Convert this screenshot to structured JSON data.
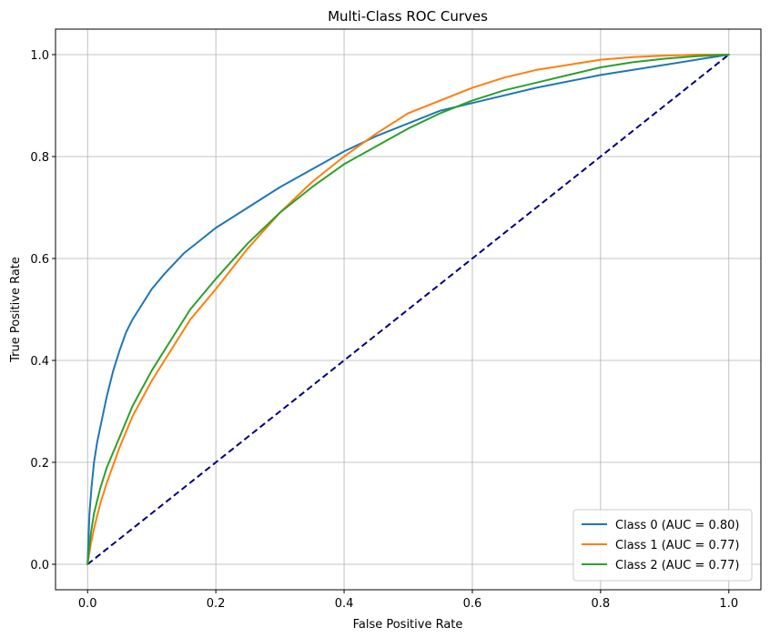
{
  "chart_data": {
    "type": "line",
    "title": "Multi-Class ROC Curves",
    "xlabel": "False Positive Rate",
    "ylabel": "True Positive Rate",
    "xlim": [
      -0.05,
      1.05
    ],
    "ylim": [
      -0.05,
      1.05
    ],
    "xticks": [
      "0.0",
      "0.2",
      "0.4",
      "0.6",
      "0.8",
      "1.0"
    ],
    "yticks": [
      "0.0",
      "0.2",
      "0.4",
      "0.6",
      "0.8",
      "1.0"
    ],
    "grid": true,
    "legend_position": "lower-right",
    "series": [
      {
        "name": "Class 0 (AUC = 0.80)",
        "color": "#1f77b4",
        "x": [
          0,
          0.003,
          0.006,
          0.01,
          0.015,
          0.02,
          0.03,
          0.04,
          0.05,
          0.06,
          0.07,
          0.08,
          0.1,
          0.12,
          0.15,
          0.18,
          0.2,
          0.25,
          0.3,
          0.35,
          0.4,
          0.45,
          0.5,
          0.55,
          0.6,
          0.7,
          0.8,
          0.9,
          1.0
        ],
        "y": [
          0,
          0.1,
          0.15,
          0.2,
          0.24,
          0.27,
          0.33,
          0.38,
          0.42,
          0.455,
          0.48,
          0.5,
          0.54,
          0.57,
          0.61,
          0.64,
          0.66,
          0.7,
          0.74,
          0.775,
          0.81,
          0.84,
          0.865,
          0.89,
          0.905,
          0.935,
          0.96,
          0.98,
          1.0
        ]
      },
      {
        "name": "Class 1 (AUC = 0.77)",
        "color": "#ff7f0e",
        "x": [
          0,
          0.005,
          0.01,
          0.02,
          0.03,
          0.05,
          0.07,
          0.1,
          0.13,
          0.16,
          0.2,
          0.25,
          0.3,
          0.35,
          0.4,
          0.45,
          0.5,
          0.55,
          0.6,
          0.65,
          0.7,
          0.75,
          0.8,
          0.85,
          0.9,
          0.95,
          1.0
        ],
        "y": [
          0,
          0.04,
          0.07,
          0.12,
          0.16,
          0.23,
          0.29,
          0.36,
          0.42,
          0.48,
          0.54,
          0.62,
          0.69,
          0.75,
          0.8,
          0.845,
          0.885,
          0.91,
          0.935,
          0.955,
          0.97,
          0.98,
          0.99,
          0.995,
          0.998,
          1.0,
          1.0
        ]
      },
      {
        "name": "Class 2 (AUC = 0.77)",
        "color": "#2ca02c",
        "x": [
          0,
          0.005,
          0.01,
          0.02,
          0.03,
          0.05,
          0.07,
          0.1,
          0.13,
          0.16,
          0.2,
          0.25,
          0.3,
          0.35,
          0.4,
          0.45,
          0.5,
          0.55,
          0.6,
          0.65,
          0.7,
          0.75,
          0.8,
          0.85,
          0.9,
          0.95,
          1.0
        ],
        "y": [
          0,
          0.06,
          0.1,
          0.15,
          0.19,
          0.25,
          0.31,
          0.38,
          0.44,
          0.5,
          0.56,
          0.63,
          0.69,
          0.74,
          0.785,
          0.82,
          0.855,
          0.885,
          0.91,
          0.93,
          0.945,
          0.96,
          0.975,
          0.985,
          0.992,
          0.997,
          1.0
        ]
      }
    ],
    "reference_line": {
      "color": "#000080",
      "style": "dashed",
      "x": [
        0,
        1
      ],
      "y": [
        0,
        1
      ]
    }
  }
}
